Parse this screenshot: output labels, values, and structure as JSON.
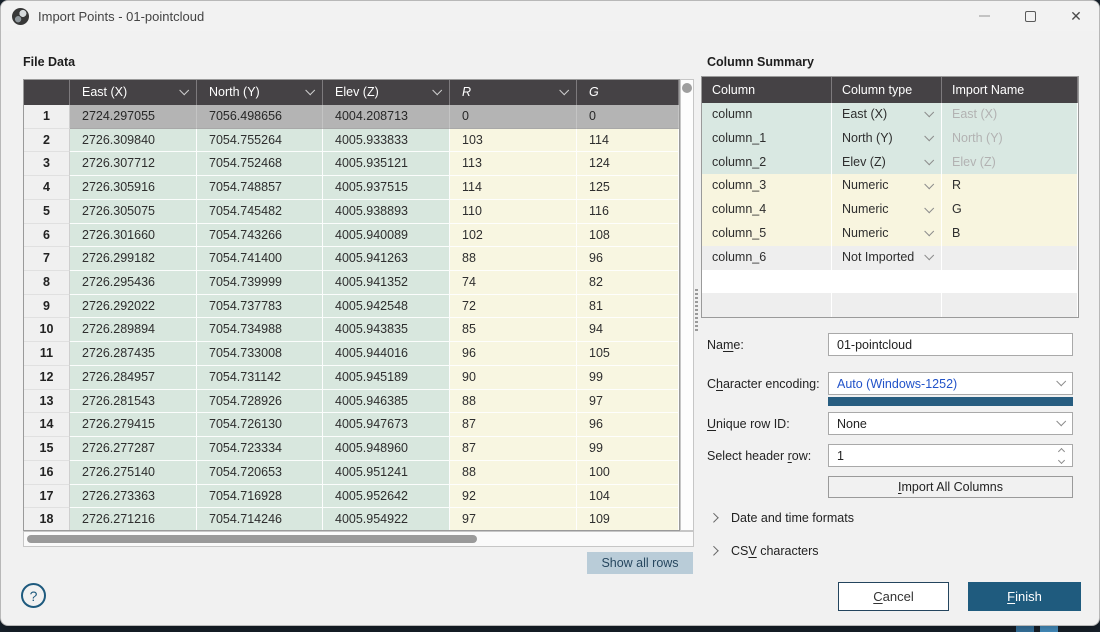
{
  "window": {
    "title": "Import Points - 01-pointcloud"
  },
  "icons": {
    "app_logo": "seequent-logo",
    "window_controls": [
      "minimize",
      "maximize",
      "close"
    ],
    "help_glyph": "?",
    "close_glyph": "✕"
  },
  "colors": {
    "accent": "#1f5b7e",
    "encoding_link_blue": "#2253c9",
    "encoding_progress_bar": "#275d80",
    "coordinate_cell_green": "#d9e8e2",
    "numeric_cell_yellow": "#f8f5df",
    "header_row_gray": "#b4b4b4",
    "table_header_dark": "#454245",
    "show_all_rows_bg": "#b9ccd8"
  },
  "left_panel": {
    "section_title": "File Data",
    "table": {
      "headers": [
        {
          "label": "",
          "italic": false,
          "chevron": false
        },
        {
          "label": "East (X)",
          "italic": false,
          "chevron": true
        },
        {
          "label": "North (Y)",
          "italic": false,
          "chevron": true
        },
        {
          "label": "Elev (Z)",
          "italic": false,
          "chevron": true
        },
        {
          "label": "R",
          "italic": true,
          "chevron": true
        },
        {
          "label": "G",
          "italic": true,
          "chevron": false
        }
      ],
      "header_row_index": 0,
      "rows": [
        [
          "1",
          "2724.297055",
          "7056.498656",
          "4004.208713",
          "0",
          "0"
        ],
        [
          "2",
          "2726.309840",
          "7054.755264",
          "4005.933833",
          "103",
          "114"
        ],
        [
          "3",
          "2726.307712",
          "7054.752468",
          "4005.935121",
          "113",
          "124"
        ],
        [
          "4",
          "2726.305916",
          "7054.748857",
          "4005.937515",
          "114",
          "125"
        ],
        [
          "5",
          "2726.305075",
          "7054.745482",
          "4005.938893",
          "110",
          "116"
        ],
        [
          "6",
          "2726.301660",
          "7054.743266",
          "4005.940089",
          "102",
          "108"
        ],
        [
          "7",
          "2726.299182",
          "7054.741400",
          "4005.941263",
          "88",
          "96"
        ],
        [
          "8",
          "2726.295436",
          "7054.739999",
          "4005.941352",
          "74",
          "82"
        ],
        [
          "9",
          "2726.292022",
          "7054.737783",
          "4005.942548",
          "72",
          "81"
        ],
        [
          "10",
          "2726.289894",
          "7054.734988",
          "4005.943835",
          "85",
          "94"
        ],
        [
          "11",
          "2726.287435",
          "7054.733008",
          "4005.944016",
          "96",
          "105"
        ],
        [
          "12",
          "2726.284957",
          "7054.731142",
          "4005.945189",
          "90",
          "99"
        ],
        [
          "13",
          "2726.281543",
          "7054.728926",
          "4005.946385",
          "88",
          "97"
        ],
        [
          "14",
          "2726.279415",
          "7054.726130",
          "4005.947673",
          "87",
          "96"
        ],
        [
          "15",
          "2726.277287",
          "7054.723334",
          "4005.948960",
          "87",
          "99"
        ],
        [
          "16",
          "2726.275140",
          "7054.720653",
          "4005.951241",
          "88",
          "100"
        ],
        [
          "17",
          "2726.273363",
          "7054.716928",
          "4005.952642",
          "92",
          "104"
        ],
        [
          "18",
          "2726.271216",
          "7054.714246",
          "4005.954922",
          "97",
          "109"
        ]
      ]
    },
    "show_all_rows_label": "Show all rows"
  },
  "right_panel": {
    "section_title": "Column Summary",
    "summary_table": {
      "headers": [
        "Column",
        "Column type",
        "Import Name"
      ],
      "rows": [
        {
          "column": "column",
          "type": "East (X)",
          "import_name": "East (X)",
          "tone": "green",
          "dim": true,
          "chevron": true
        },
        {
          "column": "column_1",
          "type": "North (Y)",
          "import_name": "North (Y)",
          "tone": "green",
          "dim": true,
          "chevron": true
        },
        {
          "column": "column_2",
          "type": "Elev (Z)",
          "import_name": "Elev (Z)",
          "tone": "green",
          "dim": true,
          "chevron": true
        },
        {
          "column": "column_3",
          "type": "Numeric",
          "import_name": "R",
          "tone": "yellow",
          "dim": false,
          "chevron": true
        },
        {
          "column": "column_4",
          "type": "Numeric",
          "import_name": "G",
          "tone": "yellow",
          "dim": false,
          "chevron": true
        },
        {
          "column": "column_5",
          "type": "Numeric",
          "import_name": "B",
          "tone": "yellow",
          "dim": false,
          "chevron": true
        },
        {
          "column": "column_6",
          "type": "Not Imported",
          "import_name": "",
          "tone": "gray",
          "dim": false,
          "chevron": true
        },
        {
          "column": "",
          "type": "",
          "import_name": "",
          "tone": "white",
          "dim": false,
          "chevron": false
        },
        {
          "column": "",
          "type": "",
          "import_name": "",
          "tone": "lightgray",
          "dim": false,
          "chevron": false
        }
      ]
    },
    "form": {
      "name_label": {
        "pre": "Na",
        "accel": "m",
        "post": "e:"
      },
      "name_value": "01-pointcloud",
      "encoding_label": {
        "pre": "C",
        "accel": "h",
        "post": "aracter encoding:"
      },
      "encoding_value": "Auto (Windows-1252)",
      "unique_label": {
        "pre": "",
        "accel": "U",
        "post": "nique row ID:"
      },
      "unique_value": "None",
      "header_label": {
        "pre": "Select header ",
        "accel": "r",
        "post": "ow:"
      },
      "header_value": "1"
    },
    "import_all": {
      "pre": "",
      "accel": "I",
      "post": "mport All Columns"
    },
    "expander_date": {
      "pre": "Date and time formats",
      "accel": "",
      "post": ""
    },
    "expander_csv": {
      "pre": "CS",
      "accel": "V",
      "post": " characters"
    },
    "cancel": {
      "pre": "",
      "accel": "C",
      "post": "ancel"
    },
    "finish": {
      "pre": "",
      "accel": "F",
      "post": "inish"
    }
  },
  "help": {
    "glyph": "?"
  }
}
